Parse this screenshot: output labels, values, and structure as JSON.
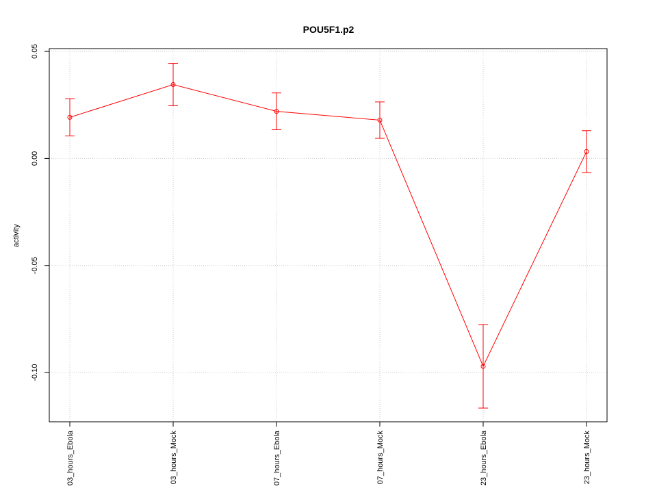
{
  "chart_data": {
    "type": "line",
    "title": "POU5F1.p2",
    "y_label": "activity",
    "categories": [
      "03_hours_Ebola",
      "03_hours_Mock",
      "07_hours_Ebola",
      "07_hours_Mock",
      "23_hours_Ebola",
      "23_hours_Mock"
    ],
    "values": [
      0.0192,
      0.0345,
      0.022,
      0.0179,
      -0.0971,
      0.0032
    ],
    "errors": [
      0.0087,
      0.0099,
      0.0086,
      0.0085,
      0.0195,
      0.0098
    ],
    "color": "#ff0000",
    "ylim": [
      -0.123,
      0.0513
    ],
    "yticks": [
      {
        "value": -0.1,
        "label": "-0.10"
      },
      -0.05,
      {
        "value": 0,
        "label": "0.00"
      },
      0.05
    ],
    "grid": true
  }
}
